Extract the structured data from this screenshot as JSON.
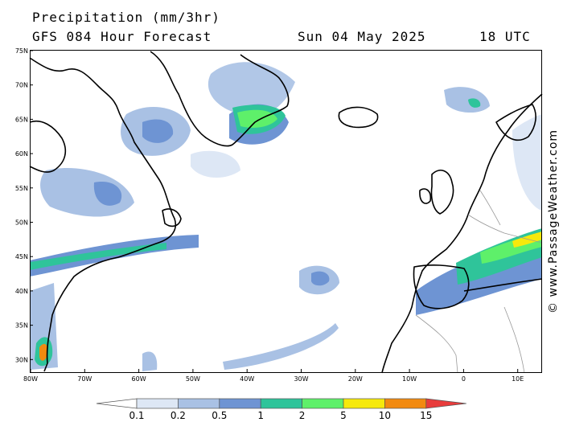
{
  "header": {
    "title": "Precipitation (mm/3hr)",
    "subtitle": "GFS 084 Hour Forecast",
    "date": "Sun 04 May 2025",
    "time": "18 UTC"
  },
  "map": {
    "region": "North Atlantic",
    "lat_ticks": [
      "75N",
      "70N",
      "65N",
      "60N",
      "55N",
      "50N",
      "45N",
      "40N",
      "35N",
      "30N"
    ],
    "lon_ticks": [
      "80W",
      "70W",
      "60W",
      "50W",
      "40W",
      "30W",
      "20W",
      "10W",
      "0",
      "10E"
    ],
    "colors": {
      "ocean": "#ffffff",
      "coast": "#000000",
      "border": "#999999"
    }
  },
  "credit": "© www.PassageWeather.com",
  "legend": {
    "values": [
      "0.1",
      "0.2",
      "0.5",
      "1",
      "2",
      "5",
      "10",
      "15"
    ],
    "colors": [
      "#ffffff",
      "#dde7f5",
      "#a9c1e4",
      "#6e94d3",
      "#2fc49a",
      "#5ef06a",
      "#f6e90c",
      "#f28a10",
      "#e83c3c"
    ]
  }
}
